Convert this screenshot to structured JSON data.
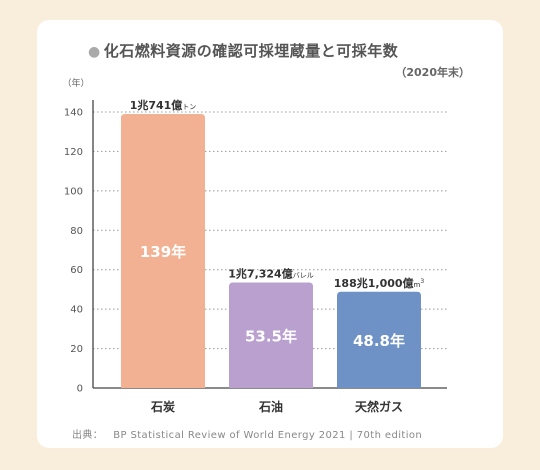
{
  "title": "化石燃料資源の確認可採埋蔵量と可採年数",
  "subtitle": "（2020年末）",
  "source": {
    "label": "出典：",
    "text": "BP Statistical Review of World Energy 2021 | 70th edition"
  },
  "chart_data": {
    "type": "bar",
    "ylabel": "（年）",
    "ylim": [
      0,
      140
    ],
    "yticks": [
      0,
      20,
      40,
      60,
      80,
      100,
      120,
      140
    ],
    "grid": true,
    "categories": [
      "石炭",
      "石油",
      "天然ガス"
    ],
    "values": [
      139,
      53.5,
      48.8
    ],
    "value_labels": [
      "139年",
      "53.5年",
      "48.8年"
    ],
    "reserve_labels": [
      {
        "main": "1兆741億",
        "unit": "トン",
        "sup": ""
      },
      {
        "main": "1兆7,324億",
        "unit": "バレル",
        "sup": ""
      },
      {
        "main": "188兆1,000億",
        "unit": "m",
        "sup": "3"
      }
    ],
    "colors": [
      "#f3b193",
      "#b9a0cf",
      "#6e91c6"
    ]
  }
}
